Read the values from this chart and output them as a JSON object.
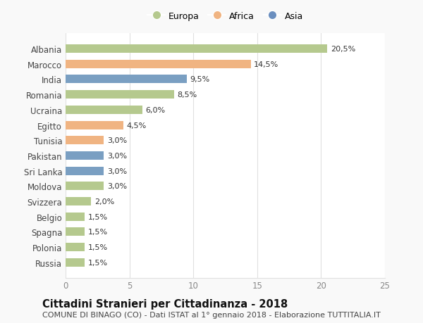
{
  "categories": [
    "Albania",
    "Marocco",
    "India",
    "Romania",
    "Ucraina",
    "Egitto",
    "Tunisia",
    "Pakistan",
    "Sri Lanka",
    "Moldova",
    "Svizzera",
    "Belgio",
    "Spagna",
    "Polonia",
    "Russia"
  ],
  "values": [
    20.5,
    14.5,
    9.5,
    8.5,
    6.0,
    4.5,
    3.0,
    3.0,
    3.0,
    3.0,
    2.0,
    1.5,
    1.5,
    1.5,
    1.5
  ],
  "bar_colors": [
    "#b5c98e",
    "#f0b482",
    "#7a9fc2",
    "#b5c98e",
    "#b5c98e",
    "#f0b482",
    "#f0b482",
    "#7a9fc2",
    "#7a9fc2",
    "#b5c98e",
    "#b5c98e",
    "#b5c98e",
    "#b5c98e",
    "#b5c98e",
    "#b5c98e"
  ],
  "labels": [
    "20,5%",
    "14,5%",
    "9,5%",
    "8,5%",
    "6,0%",
    "4,5%",
    "3,0%",
    "3,0%",
    "3,0%",
    "3,0%",
    "2,0%",
    "1,5%",
    "1,5%",
    "1,5%",
    "1,5%"
  ],
  "legend": [
    {
      "label": "Europa",
      "color": "#b5c98e"
    },
    {
      "label": "Africa",
      "color": "#f0b482"
    },
    {
      "label": "Asia",
      "color": "#6b8fbf"
    }
  ],
  "xlim": [
    0,
    25
  ],
  "xticks": [
    0,
    5,
    10,
    15,
    20,
    25
  ],
  "title": "Cittadini Stranieri per Cittadinanza - 2018",
  "subtitle": "COMUNE DI BINAGO (CO) - Dati ISTAT al 1° gennaio 2018 - Elaborazione TUTTITALIA.IT",
  "background_color": "#f9f9f9",
  "plot_bg_color": "#ffffff",
  "grid_color": "#e0e0e0",
  "bar_height": 0.55,
  "label_fontsize": 8.0,
  "ytick_fontsize": 8.5,
  "xtick_fontsize": 8.5,
  "title_fontsize": 10.5,
  "subtitle_fontsize": 8.0,
  "legend_fontsize": 9.0
}
